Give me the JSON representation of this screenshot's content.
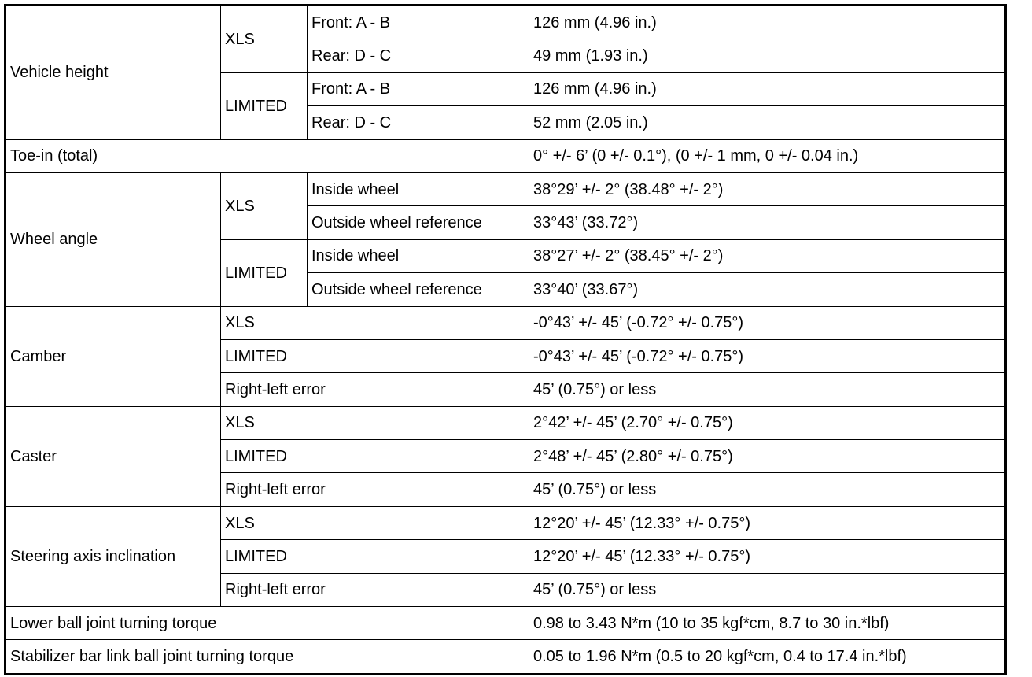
{
  "vehicle_height": {
    "label": "Vehicle height",
    "xls": {
      "label": "XLS",
      "front": {
        "label": "Front: A - B",
        "value": "126 mm (4.96 in.)"
      },
      "rear": {
        "label": "Rear: D - C",
        "value": "49 mm (1.93 in.)"
      }
    },
    "limited": {
      "label": "LIMITED",
      "front": {
        "label": "Front: A - B",
        "value": "126 mm (4.96 in.)"
      },
      "rear": {
        "label": "Rear: D - C",
        "value": "52 mm (2.05 in.)"
      }
    }
  },
  "toe_in": {
    "label": "Toe-in (total)",
    "value": "0° +/- 6’ (0 +/- 0.1°), (0 +/- 1 mm, 0 +/- 0.04 in.)"
  },
  "wheel_angle": {
    "label": "Wheel angle",
    "xls": {
      "label": "XLS",
      "inside": {
        "label": "Inside wheel",
        "value": "38°29’ +/- 2° (38.48° +/- 2°)"
      },
      "outside": {
        "label": "Outside wheel reference",
        "value": "33°43’ (33.72°)"
      }
    },
    "limited": {
      "label": "LIMITED",
      "inside": {
        "label": "Inside wheel",
        "value": "38°27’ +/- 2° (38.45° +/- 2°)"
      },
      "outside": {
        "label": "Outside wheel reference",
        "value": "33°40’ (33.67°)"
      }
    }
  },
  "camber": {
    "label": "Camber",
    "xls": {
      "label": "XLS",
      "value": "-0°43’ +/- 45’ (-0.72° +/- 0.75°)"
    },
    "limited": {
      "label": "LIMITED",
      "value": "-0°43’ +/- 45’ (-0.72° +/- 0.75°)"
    },
    "error": {
      "label": "Right-left error",
      "value": "45’ (0.75°) or less"
    }
  },
  "caster": {
    "label": "Caster",
    "xls": {
      "label": "XLS",
      "value": "2°42’ +/- 45’ (2.70° +/- 0.75°)"
    },
    "limited": {
      "label": "LIMITED",
      "value": "2°48’ +/- 45’ (2.80° +/- 0.75°)"
    },
    "error": {
      "label": "Right-left error",
      "value": "45’ (0.75°) or less"
    }
  },
  "steering_axis": {
    "label": "Steering axis inclination",
    "xls": {
      "label": "XLS",
      "value": "12°20’ +/- 45’ (12.33° +/- 0.75°)"
    },
    "limited": {
      "label": "LIMITED",
      "value": "12°20’ +/- 45’ (12.33° +/- 0.75°)"
    },
    "error": {
      "label": "Right-left error",
      "value": "45’ (0.75°) or less"
    }
  },
  "lower_ball_joint": {
    "label": "Lower ball joint turning torque",
    "value": "0.98 to 3.43 N*m (10 to 35 kgf*cm, 8.7 to 30 in.*lbf)"
  },
  "stabilizer": {
    "label": "Stabilizer bar link ball joint turning torque",
    "value": "0.05 to 1.96 N*m (0.5 to 20 kgf*cm, 0.4 to 17.4 in.*lbf)"
  }
}
